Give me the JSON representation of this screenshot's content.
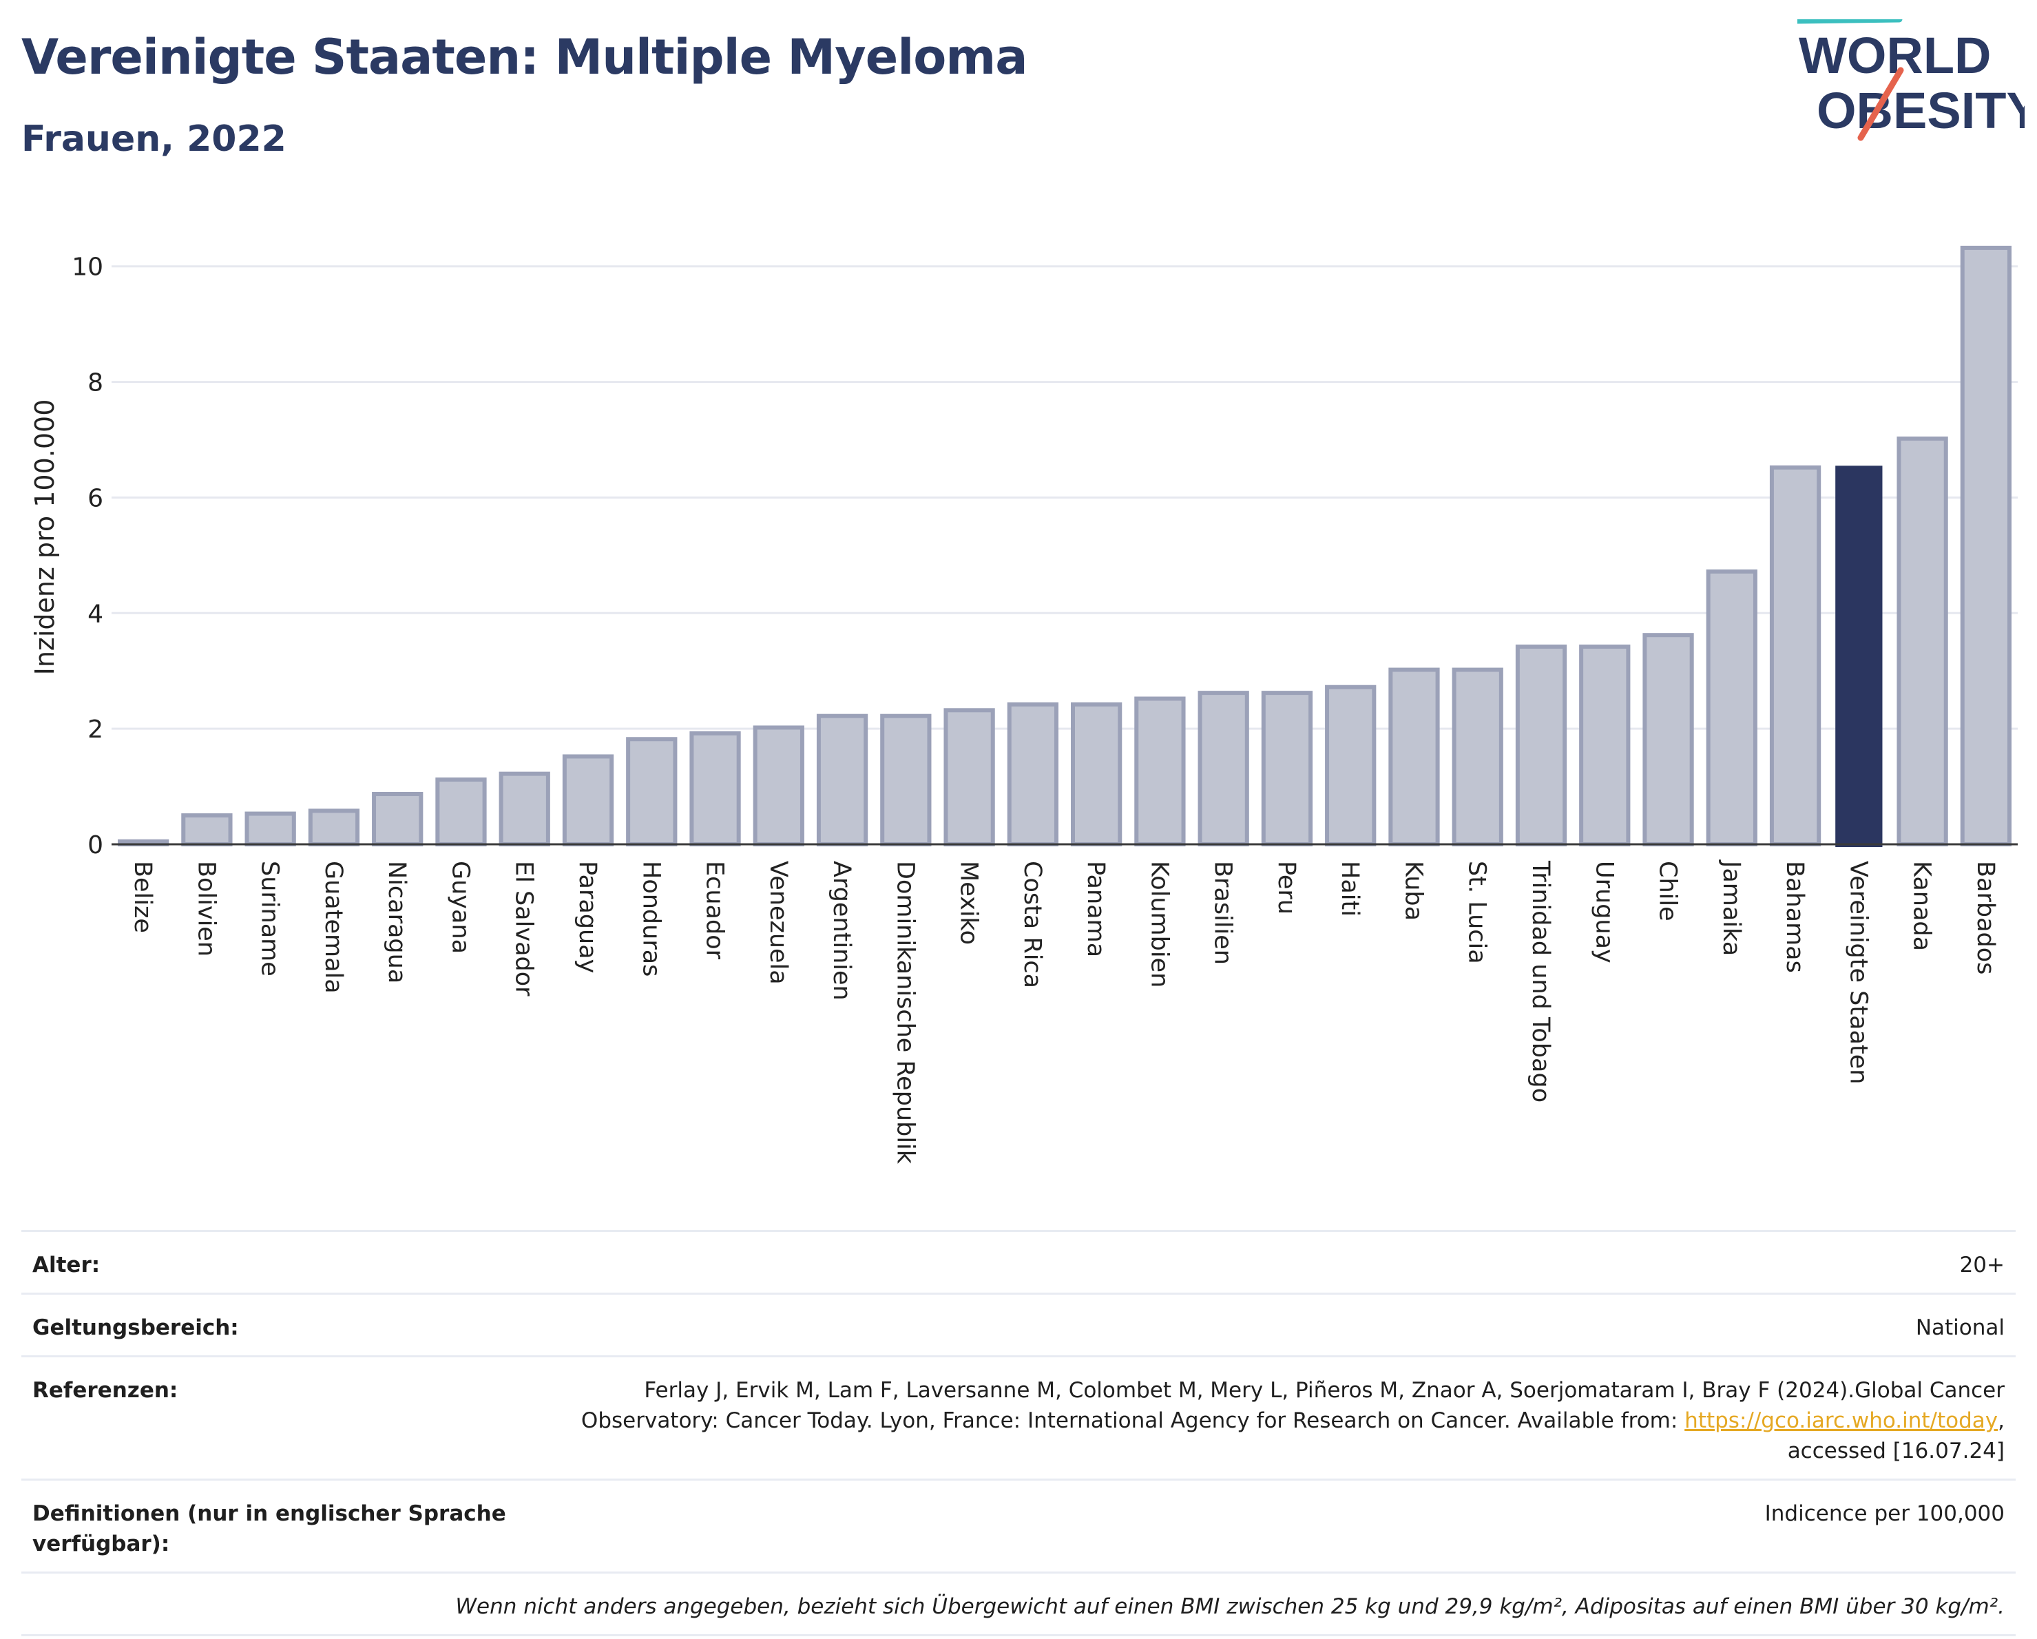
{
  "header": {
    "title": "Vereinigte Staaten: Multiple Myeloma",
    "subtitle": "Frauen, 2022"
  },
  "logo": {
    "line1": "WORLD",
    "line2": "OBESITY",
    "icon": "world-obesity-logo"
  },
  "colors": {
    "bar": "#c0c4d1",
    "bar_outline": "#9ba1b8",
    "highlight": "#2b3660",
    "title": "#2b3a63",
    "link": "#e5a823",
    "grid": "#e6e8ef"
  },
  "chart_data": {
    "type": "bar",
    "title": "Vereinigte Staaten: Multiple Myeloma",
    "ylabel": "Inzidenz pro 100.000",
    "xlabel": "",
    "ylim": [
      0,
      10.7
    ],
    "yticks": [
      0,
      2,
      4,
      6,
      8,
      10
    ],
    "grid": true,
    "highlight": "Vereinigte Staaten",
    "categories": [
      "Belize",
      "Bolivien",
      "Suriname",
      "Guatemala",
      "Nicaragua",
      "Guyana",
      "El Salvador",
      "Paraguay",
      "Honduras",
      "Ecuador",
      "Venezuela",
      "Argentinien",
      "Dominikanische Republik",
      "Mexiko",
      "Costa Rica",
      "Panama",
      "Kolumbien",
      "Brasilien",
      "Peru",
      "Haiti",
      "Kuba",
      "St. Lucia",
      "Trinidad und Tobago",
      "Uruguay",
      "Chile",
      "Jamaika",
      "Bahamas",
      "Vereinigte Staaten",
      "Kanada",
      "Barbados"
    ],
    "values": [
      0.05,
      0.5,
      0.53,
      0.58,
      0.87,
      1.12,
      1.22,
      1.52,
      1.82,
      1.92,
      2.02,
      2.22,
      2.22,
      2.32,
      2.42,
      2.42,
      2.52,
      2.62,
      2.62,
      2.72,
      3.02,
      3.02,
      3.42,
      3.42,
      3.62,
      4.72,
      6.52,
      6.55,
      7.02,
      10.32
    ]
  },
  "meta": {
    "age_label": "Alter:",
    "age_value": "20+",
    "scope_label": "Geltungsbereich:",
    "scope_value": "National",
    "ref_label": "Referenzen:",
    "ref_text_1": "Ferlay J, Ervik M, Lam F, Laversanne M, Colombet M, Mery L, Piñeros M, Znaor A, Soerjomataram I, Bray F (2024).Global Cancer",
    "ref_text_2": "Observatory: Cancer Today. Lyon, France: International Agency for Research on Cancer. Available from: ",
    "ref_link": "https://gco.iarc.who.int/today",
    "ref_text_3": ",",
    "ref_text_4": "accessed [16.07.24]",
    "def_label": "Definitionen (nur in englischer Sprache verfügbar):",
    "def_value": "Indicence per 100,000",
    "note": "Wenn nicht anders angegeben, bezieht sich Übergewicht auf einen BMI zwischen 25 kg und 29,9 kg/m², Adipositas auf einen BMI über 30 kg/m²."
  }
}
